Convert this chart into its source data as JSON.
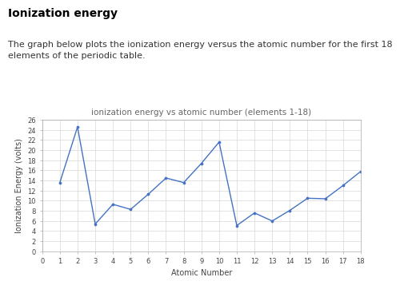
{
  "title": "ionization energy vs atomic number (elements 1-18)",
  "xlabel": "Atomic Number",
  "ylabel": "Ionization Energy (volts)",
  "header_title": "Ionization energy",
  "header_subtitle": "The graph below plots the ionization energy versus the atomic number for the first 18\nelements of the periodic table.",
  "x": [
    1,
    2,
    3,
    4,
    5,
    6,
    7,
    8,
    9,
    10,
    11,
    12,
    13,
    14,
    15,
    16,
    17,
    18
  ],
  "y": [
    13.6,
    24.6,
    5.4,
    9.3,
    8.3,
    11.3,
    14.5,
    13.6,
    17.4,
    21.6,
    5.1,
    7.6,
    6.0,
    8.1,
    10.5,
    10.4,
    13.0,
    15.8
  ],
  "line_color": "#4472c4",
  "marker_color": "#4472c4",
  "grid_color": "#d8d8d8",
  "bg_color": "#ffffff",
  "plot_bg_color": "#ffffff",
  "xlim": [
    0,
    18
  ],
  "ylim": [
    0,
    26
  ],
  "xticks": [
    0,
    1,
    2,
    3,
    4,
    5,
    6,
    7,
    8,
    9,
    10,
    11,
    12,
    13,
    14,
    15,
    16,
    17,
    18
  ],
  "yticks": [
    0,
    2,
    4,
    6,
    8,
    10,
    12,
    14,
    16,
    18,
    20,
    22,
    24,
    26
  ],
  "title_fontsize": 7.5,
  "axis_label_fontsize": 7,
  "tick_fontsize": 6,
  "header_title_fontsize": 10,
  "header_subtitle_fontsize": 8,
  "header_title_color": "#000000",
  "header_subtitle_color": "#333333",
  "axis_color": "#aaaaaa",
  "spine_color": "#aaaaaa"
}
